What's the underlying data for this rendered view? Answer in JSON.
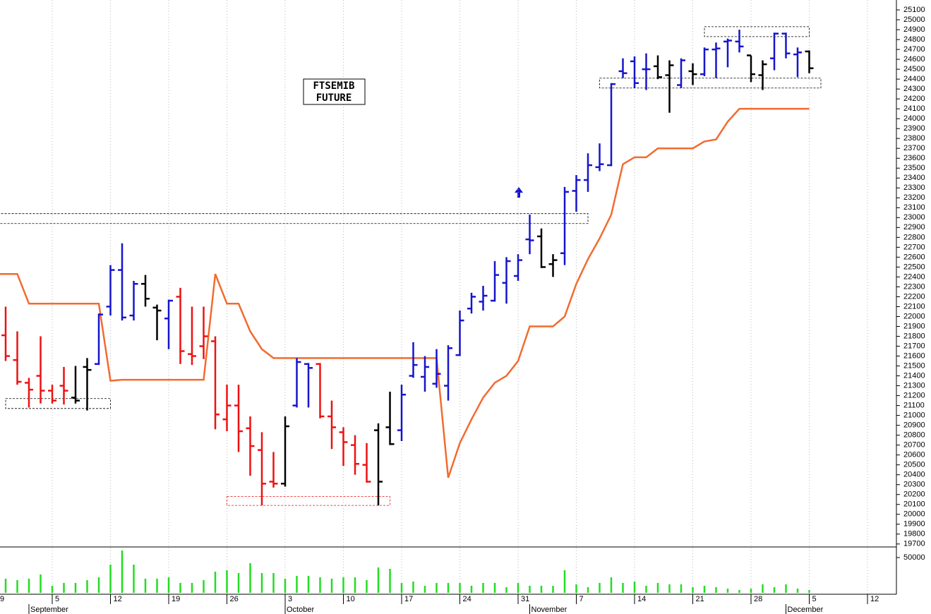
{
  "chart_data": {
    "type": "ohlc",
    "title_lines": [
      "FTSEMIB",
      "FUTURE"
    ],
    "categories": [
      "9",
      null,
      null,
      null,
      null,
      "5",
      null,
      null,
      null,
      null,
      "12",
      null,
      null,
      null,
      null,
      "19",
      null,
      null,
      null,
      null,
      "26",
      null,
      null,
      null,
      null,
      "3",
      null,
      null,
      null,
      null,
      "10",
      null,
      null,
      null,
      null,
      "17",
      null,
      null,
      null,
      null,
      "24",
      null,
      null,
      null,
      null,
      "31",
      null,
      null,
      null,
      null,
      "7",
      null,
      null,
      null,
      null,
      "14",
      null,
      null,
      null,
      null,
      "21",
      null,
      null,
      null,
      null,
      "28",
      null,
      null,
      null,
      null,
      "5",
      null,
      null,
      null,
      null,
      "12"
    ],
    "months": [
      {
        "name": "September",
        "start": 3
      },
      {
        "name": "October",
        "start": 25
      },
      {
        "name": "November",
        "start": 46
      },
      {
        "name": "December",
        "start": 68
      }
    ],
    "open": [
      null,
      21810,
      21560,
      21330,
      21400,
      21250,
      21300,
      21180,
      21490,
      21520,
      22100,
      22470,
      22010,
      22330,
      22090,
      21980,
      22200,
      21620,
      21700,
      21750,
      20960,
      21100,
      20870,
      20650,
      20330,
      20310,
      21100,
      21520,
      21520,
      20990,
      20830,
      20700,
      20500,
      20850,
      20880,
      20850,
      21400,
      21390,
      21320,
      21300,
      21610,
      22080,
      22150,
      22160,
      22340,
      22410,
      22780,
      22810,
      22530,
      22640,
      23270,
      23380,
      23510,
      23530,
      24480,
      24580,
      24500,
      24530,
      24440,
      24340,
      24480,
      24450,
      24700,
      24780,
      24780,
      24640,
      24440,
      24610,
      24860,
      24650,
      24680,
      null,
      null,
      null,
      null,
      null
    ],
    "high": [
      null,
      22100,
      21850,
      21380,
      21800,
      21310,
      21490,
      21500,
      21580,
      22030,
      22520,
      22740,
      22360,
      22420,
      22120,
      22170,
      22290,
      22100,
      22100,
      21800,
      21310,
      21310,
      20990,
      20830,
      20630,
      20990,
      21580,
      21530,
      21530,
      21150,
      20880,
      20800,
      20720,
      20920,
      21240,
      21310,
      21740,
      21600,
      21670,
      21710,
      22060,
      22240,
      22310,
      22560,
      22600,
      22630,
      23030,
      22890,
      22630,
      23310,
      23430,
      23650,
      23750,
      24360,
      24610,
      24630,
      24660,
      24640,
      24590,
      24610,
      24560,
      24720,
      24770,
      24810,
      24900,
      24640,
      24590,
      24870,
      24870,
      24720,
      24690,
      null,
      null,
      null,
      null,
      null
    ],
    "low": [
      null,
      21550,
      21310,
      21080,
      21120,
      21120,
      21110,
      21120,
      21050,
      21510,
      22010,
      21960,
      21960,
      22100,
      21760,
      21670,
      21520,
      21510,
      21570,
      20860,
      20840,
      20630,
      20390,
      20090,
      20270,
      20280,
      21080,
      21080,
      20970,
      20660,
      20490,
      20400,
      20320,
      20090,
      20700,
      20740,
      21380,
      21240,
      21280,
      21150,
      21600,
      22030,
      22060,
      22150,
      22130,
      22360,
      22630,
      22490,
      22400,
      22520,
      23060,
      23260,
      23470,
      23520,
      24410,
      24310,
      24290,
      24400,
      24060,
      24310,
      24340,
      24430,
      24410,
      24520,
      24670,
      24370,
      24290,
      24490,
      24610,
      24420,
      24460,
      null,
      null,
      null,
      null,
      null
    ],
    "close": [
      null,
      21600,
      21340,
      21260,
      21250,
      21150,
      21250,
      21150,
      21460,
      22020,
      22470,
      21990,
      22330,
      22180,
      22060,
      22160,
      21650,
      21600,
      21800,
      21010,
      21100,
      20840,
      20690,
      20310,
      20310,
      20890,
      21540,
      21480,
      20990,
      20880,
      20730,
      20510,
      20330,
      20330,
      20710,
      21210,
      21510,
      21490,
      21420,
      21680,
      21960,
      22200,
      22210,
      22420,
      22560,
      22570,
      22770,
      22500,
      22570,
      23260,
      23380,
      23530,
      23540,
      24350,
      24460,
      24360,
      24500,
      24420,
      24540,
      24590,
      24450,
      24700,
      24710,
      24790,
      24730,
      24450,
      24550,
      24860,
      24660,
      24670,
      24510,
      null,
      null,
      null,
      null,
      null
    ],
    "bar_colors": [
      null,
      "#ee1111",
      "#ee1111",
      "#ee1111",
      "#ee1111",
      "#ee1111",
      "#ee1111",
      "#000000",
      "#000000",
      "#1515cc",
      "#1515cc",
      "#1515cc",
      "#1515cc",
      "#000000",
      "#000000",
      "#1515cc",
      "#ee1111",
      "#ee1111",
      "#ee1111",
      "#ee1111",
      "#ee1111",
      "#ee1111",
      "#ee1111",
      "#ee1111",
      "#ee1111",
      "#000000",
      "#1515cc",
      "#1515cc",
      "#ee1111",
      "#ee1111",
      "#ee1111",
      "#ee1111",
      "#ee1111",
      "#000000",
      "#000000",
      "#1515cc",
      "#1515cc",
      "#1515cc",
      "#1515cc",
      "#1515cc",
      "#1515cc",
      "#1515cc",
      "#1515cc",
      "#1515cc",
      "#1515cc",
      "#1515cc",
      "#1515cc",
      "#000000",
      "#000000",
      "#1515cc",
      "#1515cc",
      "#1515cc",
      "#1515cc",
      "#1515cc",
      "#1515cc",
      "#1515cc",
      "#1515cc",
      "#000000",
      "#000000",
      "#1515cc",
      "#000000",
      "#1515cc",
      "#1515cc",
      "#1515cc",
      "#1515cc",
      "#000000",
      "#000000",
      "#1515cc",
      "#1515cc",
      "#1515cc",
      "#000000",
      null,
      null,
      null,
      null,
      null
    ],
    "stop": {
      "color": "#f26b2f",
      "values": [
        22430,
        22430,
        22430,
        22130,
        22130,
        22130,
        22130,
        22130,
        22130,
        22130,
        21350,
        21360,
        21360,
        21360,
        21360,
        21360,
        21360,
        21360,
        21360,
        22430,
        22130,
        22130,
        21850,
        21670,
        21580,
        21580,
        21580,
        21580,
        21580,
        21580,
        21580,
        21580,
        21580,
        21580,
        21580,
        21580,
        21580,
        21580,
        21580,
        20370,
        20720,
        20960,
        21180,
        21330,
        21400,
        21550,
        21900,
        21900,
        21900,
        22000,
        22330,
        22580,
        22790,
        23030,
        23540,
        23610,
        23610,
        23700,
        23700,
        23700,
        23700,
        23770,
        23790,
        23970,
        24100,
        24100,
        24100,
        24100,
        24100,
        24100,
        24100,
        null,
        null,
        null,
        null,
        null
      ]
    },
    "ylim": [
      19670,
      25200
    ],
    "yticks": [
      19700,
      19800,
      19900,
      20000,
      20100,
      20200,
      20300,
      20400,
      20500,
      20600,
      20700,
      20800,
      20900,
      21000,
      21100,
      21200,
      21300,
      21400,
      21500,
      21600,
      21700,
      21800,
      21900,
      22000,
      22100,
      22200,
      22300,
      22400,
      22500,
      22600,
      22700,
      22800,
      22900,
      23000,
      23100,
      23200,
      23300,
      23400,
      23500,
      23600,
      23700,
      23800,
      23900,
      24000,
      24100,
      24200,
      24300,
      24400,
      24500,
      24600,
      24700,
      24800,
      24900,
      25000,
      25100
    ],
    "volume": {
      "color": "#22dd22",
      "ylim": [
        0,
        63000
      ],
      "yticks": [
        50000
      ],
      "values": [
        null,
        20000,
        18000,
        20000,
        26000,
        10000,
        14000,
        14000,
        18000,
        22000,
        40000,
        60000,
        40000,
        20000,
        20000,
        22000,
        14000,
        14000,
        18000,
        30000,
        32000,
        28000,
        42000,
        28000,
        28000,
        20000,
        24000,
        24000,
        22000,
        20000,
        22000,
        22000,
        18000,
        36000,
        34000,
        14000,
        16000,
        10000,
        14000,
        14000,
        14000,
        10000,
        14000,
        14000,
        8000,
        14000,
        10000,
        10000,
        10000,
        32000,
        12000,
        8000,
        14000,
        22000,
        14000,
        16000,
        10000,
        14000,
        12000,
        12000,
        8000,
        10000,
        8000,
        6000,
        4000,
        6000,
        12000,
        8000,
        12000,
        6000,
        4000,
        null,
        null,
        null,
        null,
        null
      ]
    },
    "zones": [
      {
        "start": 1,
        "end": 10,
        "low": 21070,
        "high": 21170,
        "color": "#000000"
      },
      {
        "start": 0,
        "end": 51,
        "low": 22940,
        "high": 23040,
        "color": "#000000"
      },
      {
        "start": 20,
        "end": 34,
        "low": 20090,
        "high": 20180,
        "color": "#ee1111"
      },
      {
        "start": 52,
        "end": 71,
        "low": 24310,
        "high": 24410,
        "color": "#000000"
      },
      {
        "start": 61,
        "end": 70,
        "low": 24830,
        "high": 24930,
        "color": "#000000"
      }
    ]
  }
}
